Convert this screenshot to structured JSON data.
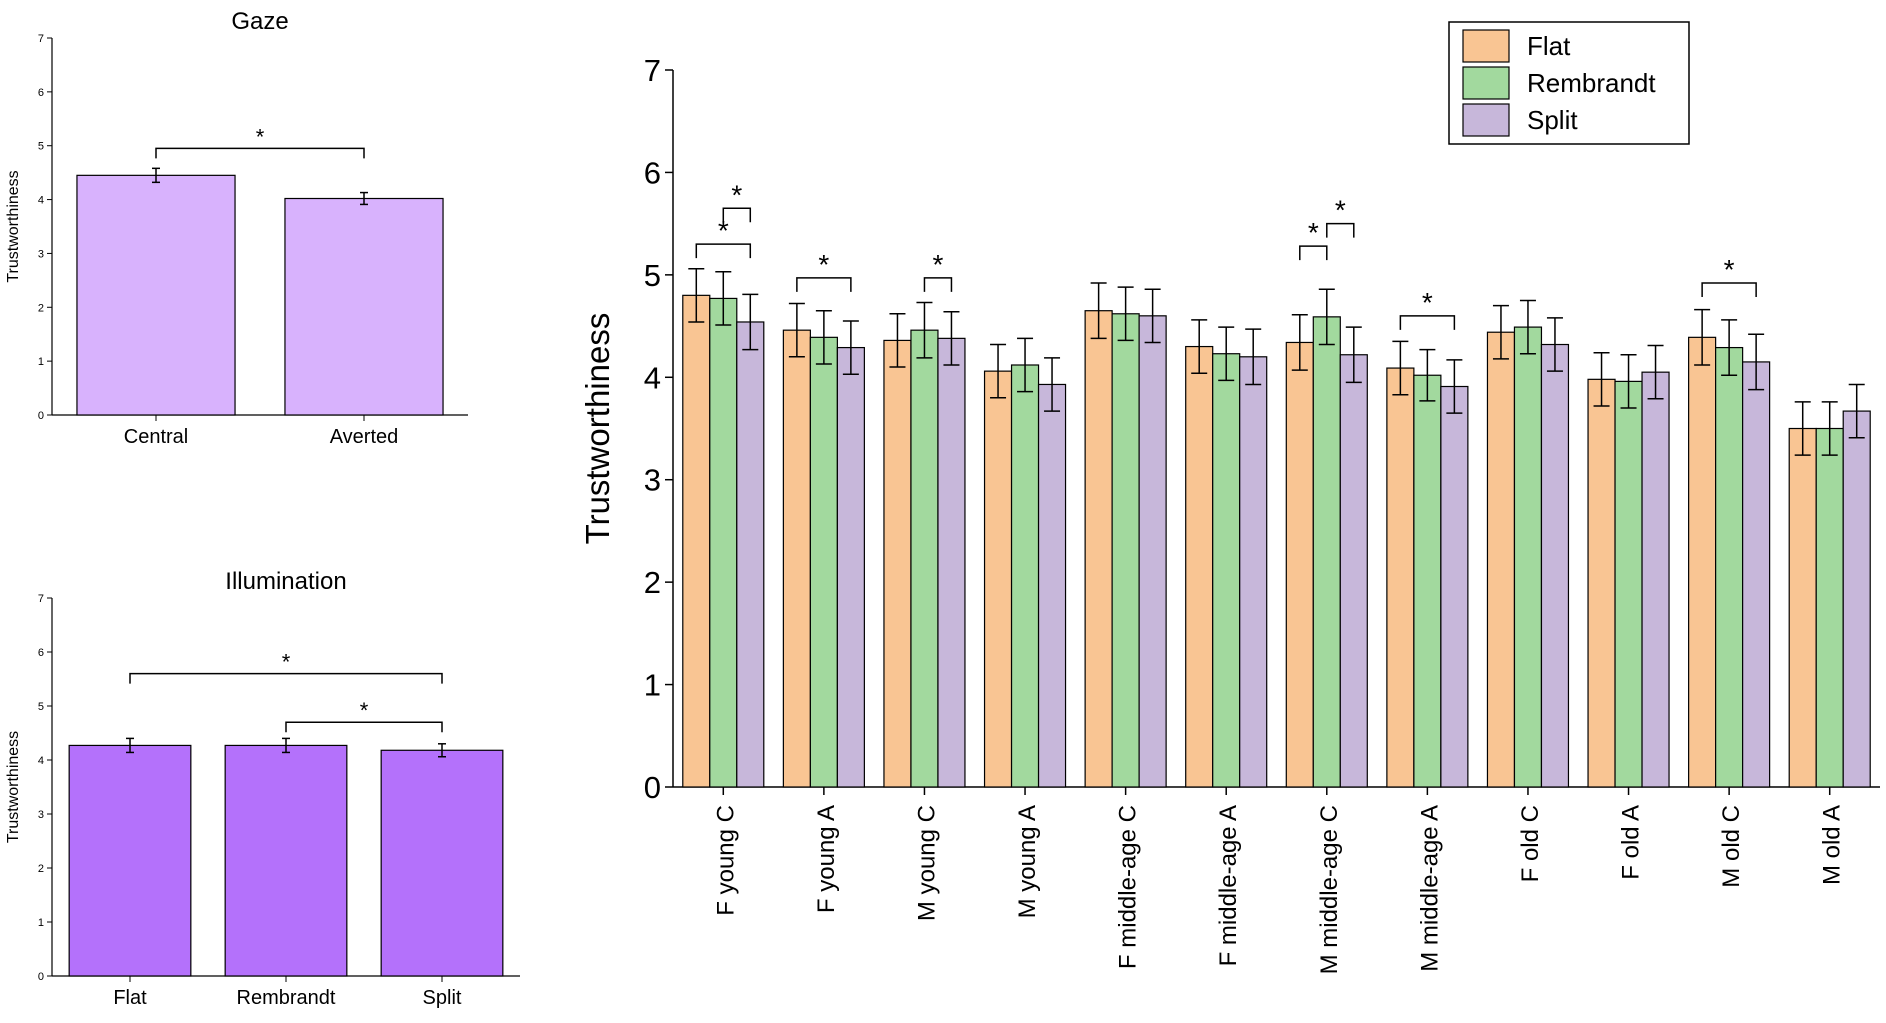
{
  "chart_data": [
    {
      "id": "gaze",
      "type": "bar",
      "title": "Gaze",
      "ylabel": "Trustworthiness",
      "xlabel": "",
      "ylim": [
        0,
        7
      ],
      "yticks": [
        "0",
        "1",
        "2",
        "3",
        "4",
        "5",
        "6",
        "7"
      ],
      "categories": [
        "Central",
        "Averted"
      ],
      "values": [
        4.45,
        4.02
      ],
      "errors": [
        0.13,
        0.11
      ],
      "color": "#d8b2fd",
      "significance": [
        {
          "from": 0,
          "to": 1,
          "label": "*",
          "level": 4.95
        }
      ]
    },
    {
      "id": "illumination",
      "type": "bar",
      "title": "Illumination",
      "ylabel": "Trustworthiness",
      "xlabel": "",
      "ylim": [
        0,
        7
      ],
      "yticks": [
        "0",
        "1",
        "2",
        "3",
        "4",
        "5",
        "6",
        "7"
      ],
      "categories": [
        "Flat",
        "Rembrandt",
        "Split"
      ],
      "values": [
        4.27,
        4.27,
        4.18
      ],
      "errors": [
        0.13,
        0.13,
        0.12
      ],
      "color": "#b471fb",
      "significance": [
        {
          "from": 0,
          "to": 2,
          "label": "*",
          "level": 5.6
        },
        {
          "from": 1,
          "to": 2,
          "label": "*",
          "level": 4.7
        }
      ]
    },
    {
      "id": "main",
      "type": "bar",
      "title": "",
      "ylabel": "Trustworthiness",
      "xlabel": "",
      "ylim": [
        0,
        7
      ],
      "yticks": [
        "0",
        "1",
        "2",
        "3",
        "4",
        "5",
        "6",
        "7"
      ],
      "legend_position": "top-right",
      "categories": [
        "F young C",
        "F young A",
        "M young C",
        "M young A",
        "F middle-age C",
        "F middle-age A",
        "M middle-age C",
        "M middle-age A",
        "F old C",
        "F old A",
        "M old C",
        "M old A"
      ],
      "series": [
        {
          "name": "Flat",
          "color": "#f9c593",
          "values": [
            4.8,
            4.46,
            4.36,
            4.06,
            4.65,
            4.3,
            4.34,
            4.09,
            4.44,
            3.98,
            4.39,
            3.5
          ],
          "errors": [
            0.26,
            0.26,
            0.26,
            0.26,
            0.27,
            0.26,
            0.27,
            0.26,
            0.26,
            0.26,
            0.27,
            0.26
          ]
        },
        {
          "name": "Rembrandt",
          "color": "#a2d99e",
          "values": [
            4.77,
            4.39,
            4.46,
            4.12,
            4.62,
            4.23,
            4.59,
            4.02,
            4.49,
            3.96,
            4.29,
            3.5
          ],
          "errors": [
            0.26,
            0.26,
            0.27,
            0.26,
            0.26,
            0.26,
            0.27,
            0.25,
            0.26,
            0.26,
            0.27,
            0.26
          ]
        },
        {
          "name": "Split",
          "color": "#c7b7da",
          "values": [
            4.54,
            4.29,
            4.38,
            3.93,
            4.6,
            4.2,
            4.22,
            3.91,
            4.32,
            4.05,
            4.15,
            3.67
          ],
          "errors": [
            0.27,
            0.26,
            0.26,
            0.26,
            0.26,
            0.27,
            0.27,
            0.26,
            0.26,
            0.26,
            0.27,
            0.26
          ]
        }
      ],
      "significance": [
        {
          "group": 0,
          "from": 0,
          "to": 2,
          "label": "*",
          "level": 5.3
        },
        {
          "group": 0,
          "from": 1,
          "to": 2,
          "label": "*",
          "level": 5.65
        },
        {
          "group": 1,
          "from": 0,
          "to": 2,
          "label": "*",
          "level": 4.97
        },
        {
          "group": 2,
          "from": 1,
          "to": 2,
          "label": "*",
          "level": 4.97
        },
        {
          "group": 6,
          "from": 0,
          "to": 1,
          "label": "*",
          "level": 5.28
        },
        {
          "group": 6,
          "from": 1,
          "to": 2,
          "label": "*",
          "level": 5.5
        },
        {
          "group": 7,
          "from": 0,
          "to": 2,
          "label": "*",
          "level": 4.6
        },
        {
          "group": 10,
          "from": 0,
          "to": 2,
          "label": "*",
          "level": 4.92
        }
      ]
    }
  ]
}
